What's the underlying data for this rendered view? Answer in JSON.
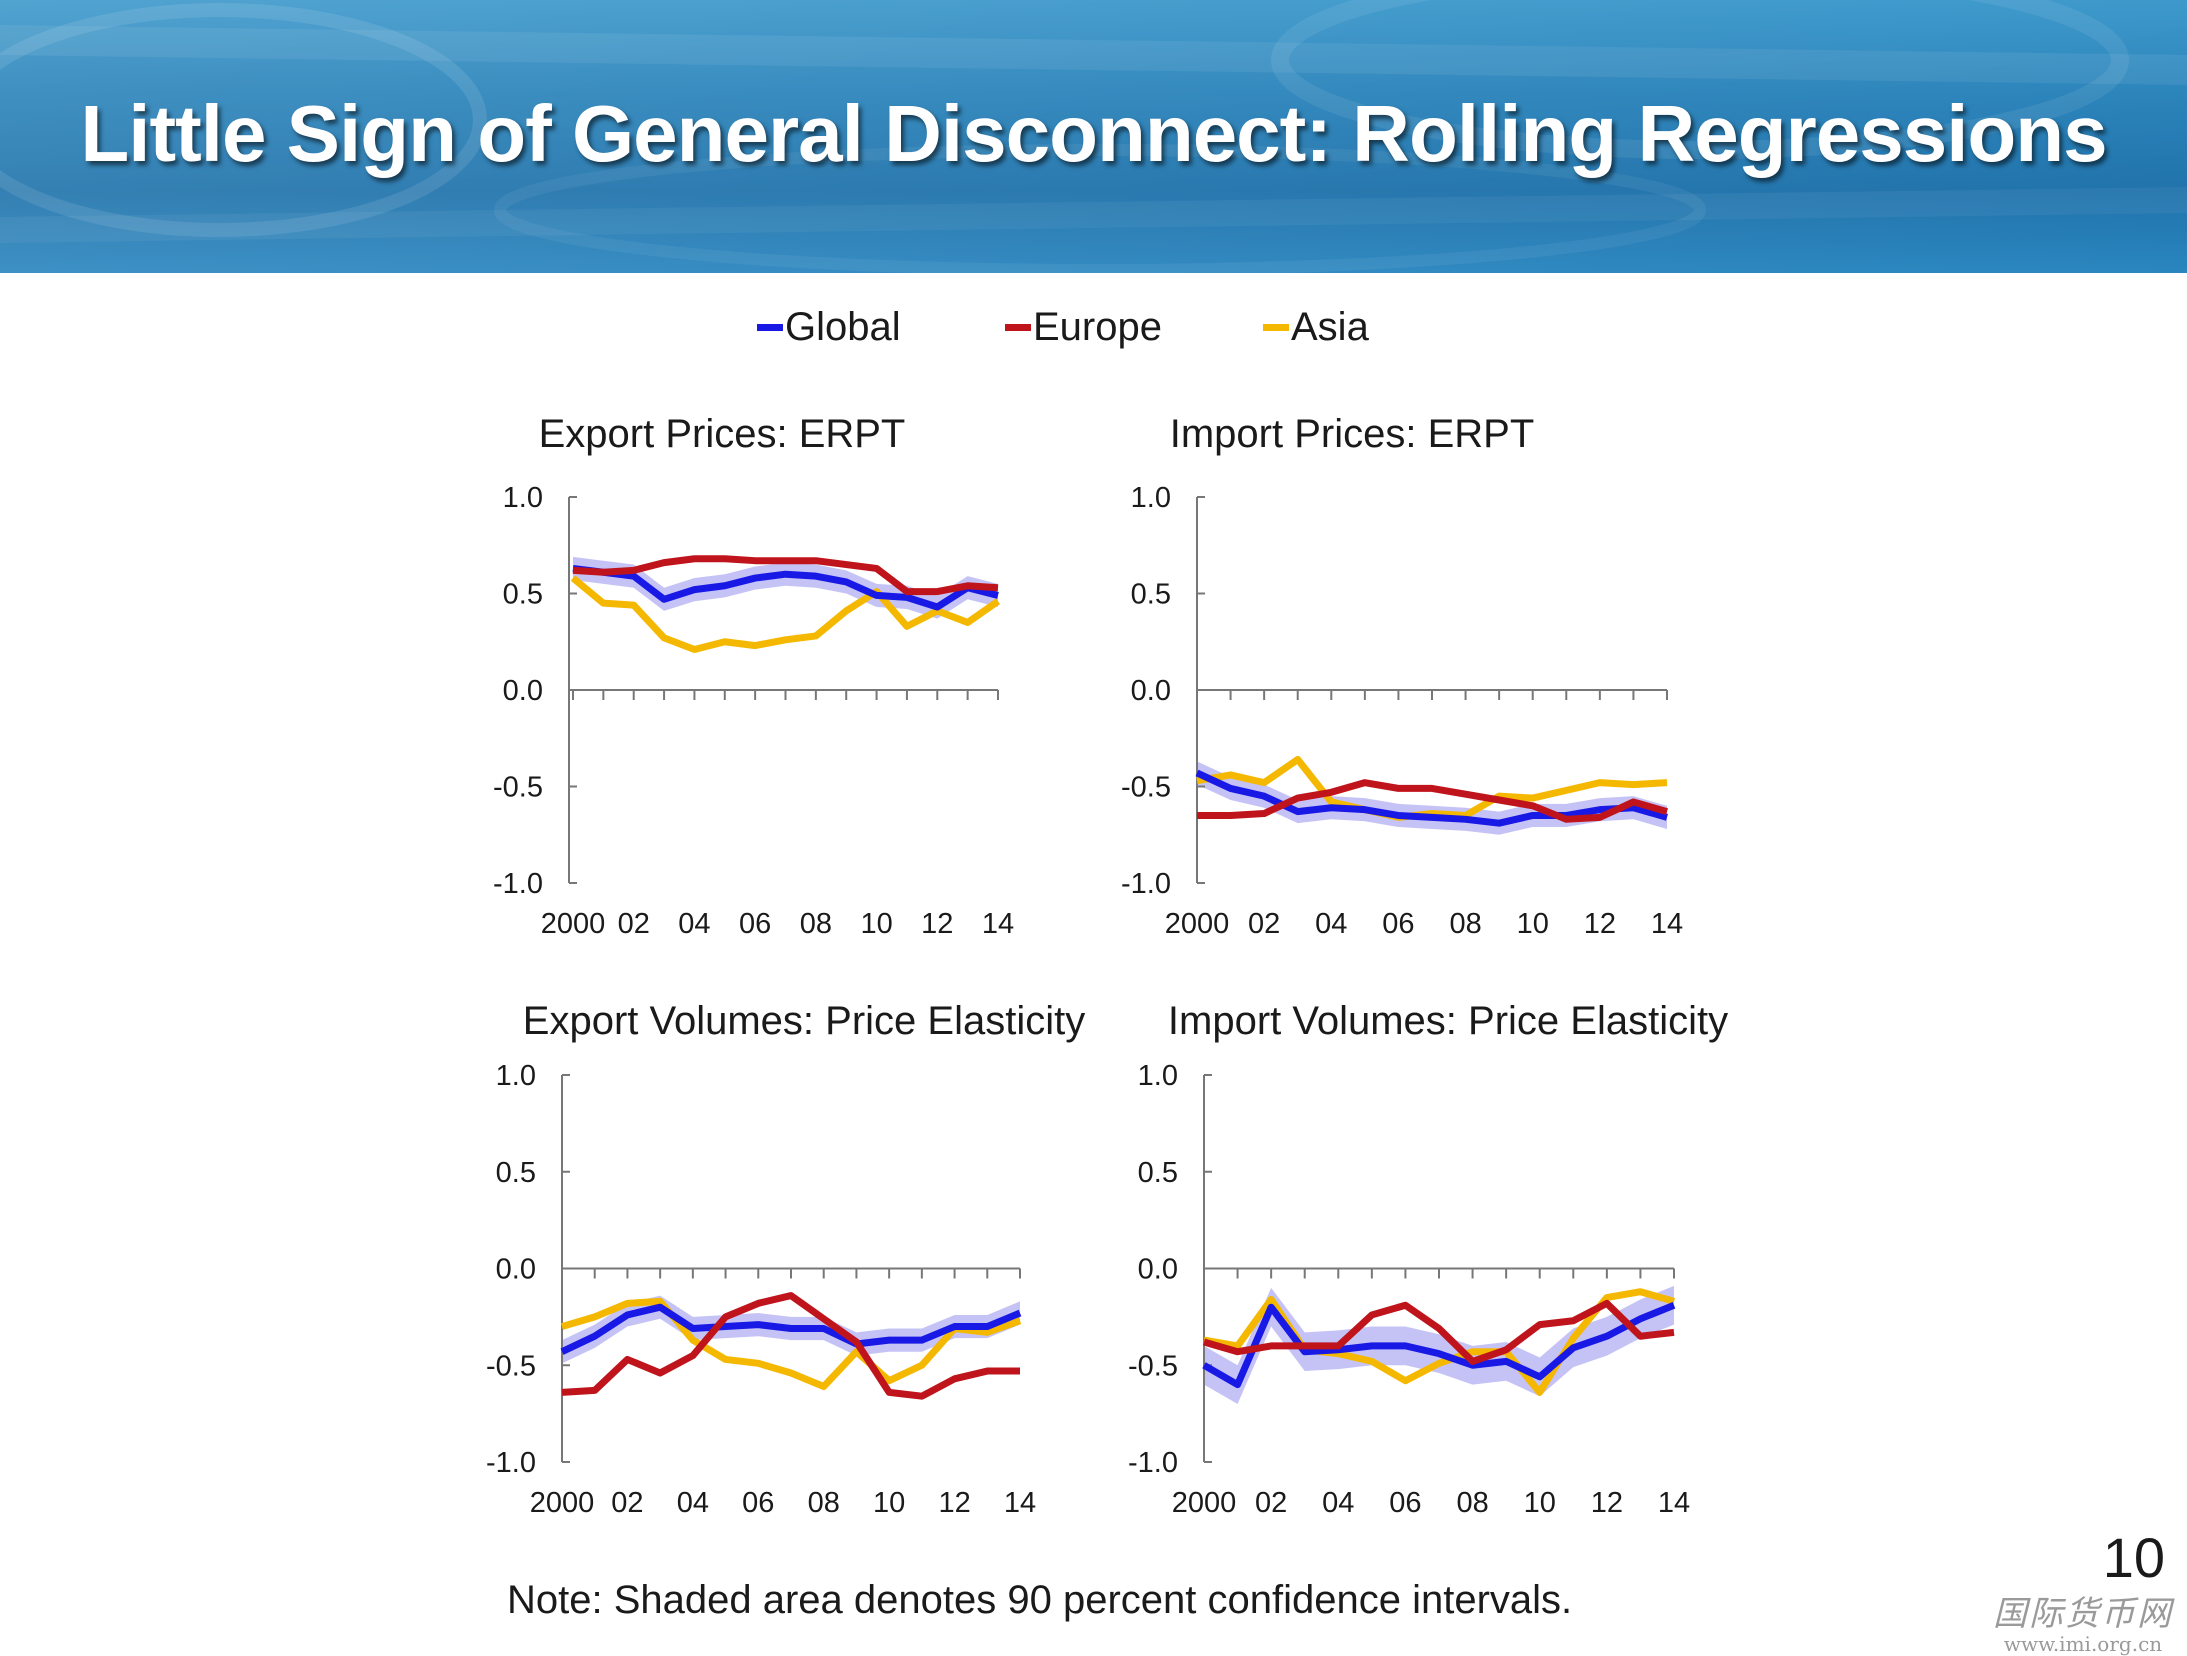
{
  "slide": {
    "title": "Little Sign of General Disconnect:  Rolling Regressions",
    "note": "Note: Shaded area denotes 90 percent confidence intervals.",
    "page_number": "10",
    "watermark": {
      "main": "国际货币网",
      "url": "www.imi.org.cn"
    },
    "banner_colors": {
      "top": "#2b8fc6",
      "bottom": "#1a6fa9"
    }
  },
  "legend": [
    {
      "label": "Global",
      "color": "#1919e6"
    },
    {
      "label": "Europe",
      "color": "#c0141c"
    },
    {
      "label": "Asia",
      "color": "#f5b800"
    }
  ],
  "chart_data": [
    {
      "id": "export-prices",
      "type": "line",
      "title": "Export Prices:  ERPT",
      "x": [
        2000,
        2001,
        2002,
        2003,
        2004,
        2005,
        2006,
        2007,
        2008,
        2009,
        2010,
        2011,
        2012,
        2013,
        2014
      ],
      "x_tick_labels": [
        "2000",
        "02",
        "04",
        "06",
        "08",
        "10",
        "12",
        "14"
      ],
      "ylim": [
        -1.0,
        1.0
      ],
      "y_ticks": [
        "1.0",
        "0.5",
        "0.0",
        "-0.5",
        "-1.0"
      ],
      "series": [
        {
          "name": "Global",
          "values": [
            0.63,
            0.61,
            0.59,
            0.47,
            0.52,
            0.54,
            0.58,
            0.6,
            0.59,
            0.56,
            0.49,
            0.48,
            0.43,
            0.53,
            0.49
          ],
          "ci": 0.06
        },
        {
          "name": "Europe",
          "values": [
            0.62,
            0.61,
            0.62,
            0.66,
            0.68,
            0.68,
            0.67,
            0.67,
            0.67,
            0.65,
            0.63,
            0.51,
            0.51,
            0.54,
            0.53
          ]
        },
        {
          "name": "Asia",
          "values": [
            0.58,
            0.45,
            0.44,
            0.27,
            0.21,
            0.25,
            0.23,
            0.26,
            0.28,
            0.41,
            0.51,
            0.33,
            0.41,
            0.35,
            0.46
          ]
        }
      ]
    },
    {
      "id": "import-prices",
      "type": "line",
      "title": "Import Prices:  ERPT",
      "x": [
        2000,
        2001,
        2002,
        2003,
        2004,
        2005,
        2006,
        2007,
        2008,
        2009,
        2010,
        2011,
        2012,
        2013,
        2014
      ],
      "x_tick_labels": [
        "2000",
        "02",
        "04",
        "06",
        "08",
        "10",
        "12",
        "14"
      ],
      "ylim": [
        -1.0,
        1.0
      ],
      "y_ticks": [
        "1.0",
        "0.5",
        "0.0",
        "-0.5",
        "-1.0"
      ],
      "series": [
        {
          "name": "Global",
          "values": [
            -0.43,
            -0.51,
            -0.55,
            -0.63,
            -0.61,
            -0.62,
            -0.65,
            -0.66,
            -0.67,
            -0.69,
            -0.65,
            -0.65,
            -0.62,
            -0.61,
            -0.66
          ],
          "ci": 0.06
        },
        {
          "name": "Europe",
          "values": [
            -0.65,
            -0.65,
            -0.64,
            -0.56,
            -0.53,
            -0.48,
            -0.51,
            -0.51,
            -0.54,
            -0.57,
            -0.6,
            -0.67,
            -0.66,
            -0.58,
            -0.63
          ]
        },
        {
          "name": "Asia",
          "values": [
            -0.47,
            -0.44,
            -0.48,
            -0.36,
            -0.58,
            -0.62,
            -0.66,
            -0.64,
            -0.65,
            -0.55,
            -0.56,
            -0.52,
            -0.48,
            -0.49,
            -0.48
          ]
        }
      ]
    },
    {
      "id": "export-volumes",
      "type": "line",
      "title": "Export Volumes:  Price Elasticity",
      "x": [
        2000,
        2001,
        2002,
        2003,
        2004,
        2005,
        2006,
        2007,
        2008,
        2009,
        2010,
        2011,
        2012,
        2013,
        2014
      ],
      "x_tick_labels": [
        "2000",
        "02",
        "04",
        "06",
        "08",
        "10",
        "12",
        "14"
      ],
      "ylim": [
        -1.0,
        1.0
      ],
      "y_ticks": [
        "1.0",
        "0.5",
        "0.0",
        "-0.5",
        "-1.0"
      ],
      "series": [
        {
          "name": "Global",
          "values": [
            -0.43,
            -0.35,
            -0.24,
            -0.2,
            -0.31,
            -0.3,
            -0.29,
            -0.31,
            -0.31,
            -0.39,
            -0.37,
            -0.37,
            -0.3,
            -0.3,
            -0.23
          ],
          "ci": 0.06
        },
        {
          "name": "Europe",
          "values": [
            -0.64,
            -0.63,
            -0.47,
            -0.54,
            -0.45,
            -0.25,
            -0.18,
            -0.14,
            -0.26,
            -0.38,
            -0.64,
            -0.66,
            -0.57,
            -0.53,
            -0.53
          ]
        },
        {
          "name": "Asia",
          "values": [
            -0.3,
            -0.25,
            -0.18,
            -0.17,
            -0.37,
            -0.47,
            -0.49,
            -0.54,
            -0.61,
            -0.43,
            -0.58,
            -0.5,
            -0.31,
            -0.33,
            -0.27
          ]
        }
      ]
    },
    {
      "id": "import-volumes",
      "type": "line",
      "title": "Import Volumes:  Price Elasticity",
      "x": [
        2000,
        2001,
        2002,
        2003,
        2004,
        2005,
        2006,
        2007,
        2008,
        2009,
        2010,
        2011,
        2012,
        2013,
        2014
      ],
      "x_tick_labels": [
        "2000",
        "02",
        "04",
        "06",
        "08",
        "10",
        "12",
        "14"
      ],
      "ylim": [
        -1.0,
        1.0
      ],
      "y_ticks": [
        "1.0",
        "0.5",
        "0.0",
        "-0.5",
        "-1.0"
      ],
      "series": [
        {
          "name": "Global",
          "values": [
            -0.5,
            -0.6,
            -0.2,
            -0.43,
            -0.42,
            -0.4,
            -0.4,
            -0.44,
            -0.5,
            -0.48,
            -0.56,
            -0.41,
            -0.35,
            -0.26,
            -0.19
          ],
          "ci": 0.1
        },
        {
          "name": "Europe",
          "values": [
            -0.38,
            -0.43,
            -0.4,
            -0.4,
            -0.4,
            -0.24,
            -0.19,
            -0.31,
            -0.48,
            -0.42,
            -0.29,
            -0.27,
            -0.18,
            -0.35,
            -0.33
          ]
        },
        {
          "name": "Asia",
          "values": [
            -0.37,
            -0.4,
            -0.16,
            -0.42,
            -0.44,
            -0.48,
            -0.58,
            -0.49,
            -0.43,
            -0.43,
            -0.64,
            -0.36,
            -0.15,
            -0.12,
            -0.17
          ]
        }
      ]
    }
  ]
}
